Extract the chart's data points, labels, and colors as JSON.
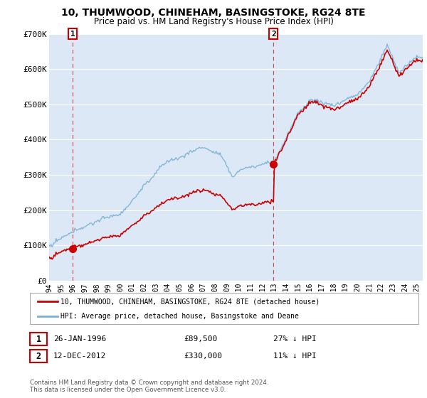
{
  "title": "10, THUMWOOD, CHINEHAM, BASINGSTOKE, RG24 8TE",
  "subtitle": "Price paid vs. HM Land Registry's House Price Index (HPI)",
  "legend_line1": "10, THUMWOOD, CHINEHAM, BASINGSTOKE, RG24 8TE (detached house)",
  "legend_line2": "HPI: Average price, detached house, Basingstoke and Deane",
  "annotation1": [
    "1",
    "26-JAN-1996",
    "£89,500",
    "27% ↓ HPI"
  ],
  "annotation2": [
    "2",
    "12-DEC-2012",
    "£330,000",
    "11% ↓ HPI"
  ],
  "footnote": "Contains HM Land Registry data © Crown copyright and database right 2024.\nThis data is licensed under the Open Government Licence v3.0.",
  "sale1_year": 1996,
  "sale1_month": 1,
  "sale1_price": 89500,
  "sale2_year": 2012,
  "sale2_month": 12,
  "sale2_price": 330000,
  "hpi_color": "#7ab0d4",
  "sale_color": "#cc0000",
  "ylim": [
    0,
    700000
  ],
  "xlim_start": 1994.0,
  "xlim_end": 2025.5,
  "yticks": [
    0,
    100000,
    200000,
    300000,
    400000,
    500000,
    600000,
    700000
  ],
  "ytick_labels": [
    "£0",
    "£100K",
    "£200K",
    "£300K",
    "£400K",
    "£500K",
    "£600K",
    "£700K"
  ],
  "xticks": [
    1994,
    1995,
    1996,
    1997,
    1998,
    1999,
    2000,
    2001,
    2002,
    2003,
    2004,
    2005,
    2006,
    2007,
    2008,
    2009,
    2010,
    2011,
    2012,
    2013,
    2014,
    2015,
    2016,
    2017,
    2018,
    2019,
    2020,
    2021,
    2022,
    2023,
    2024,
    2025
  ],
  "background_color": "#dce8f5",
  "grid_color": "#ffffff",
  "fig_width": 6.0,
  "fig_height": 5.6,
  "dpi": 100
}
